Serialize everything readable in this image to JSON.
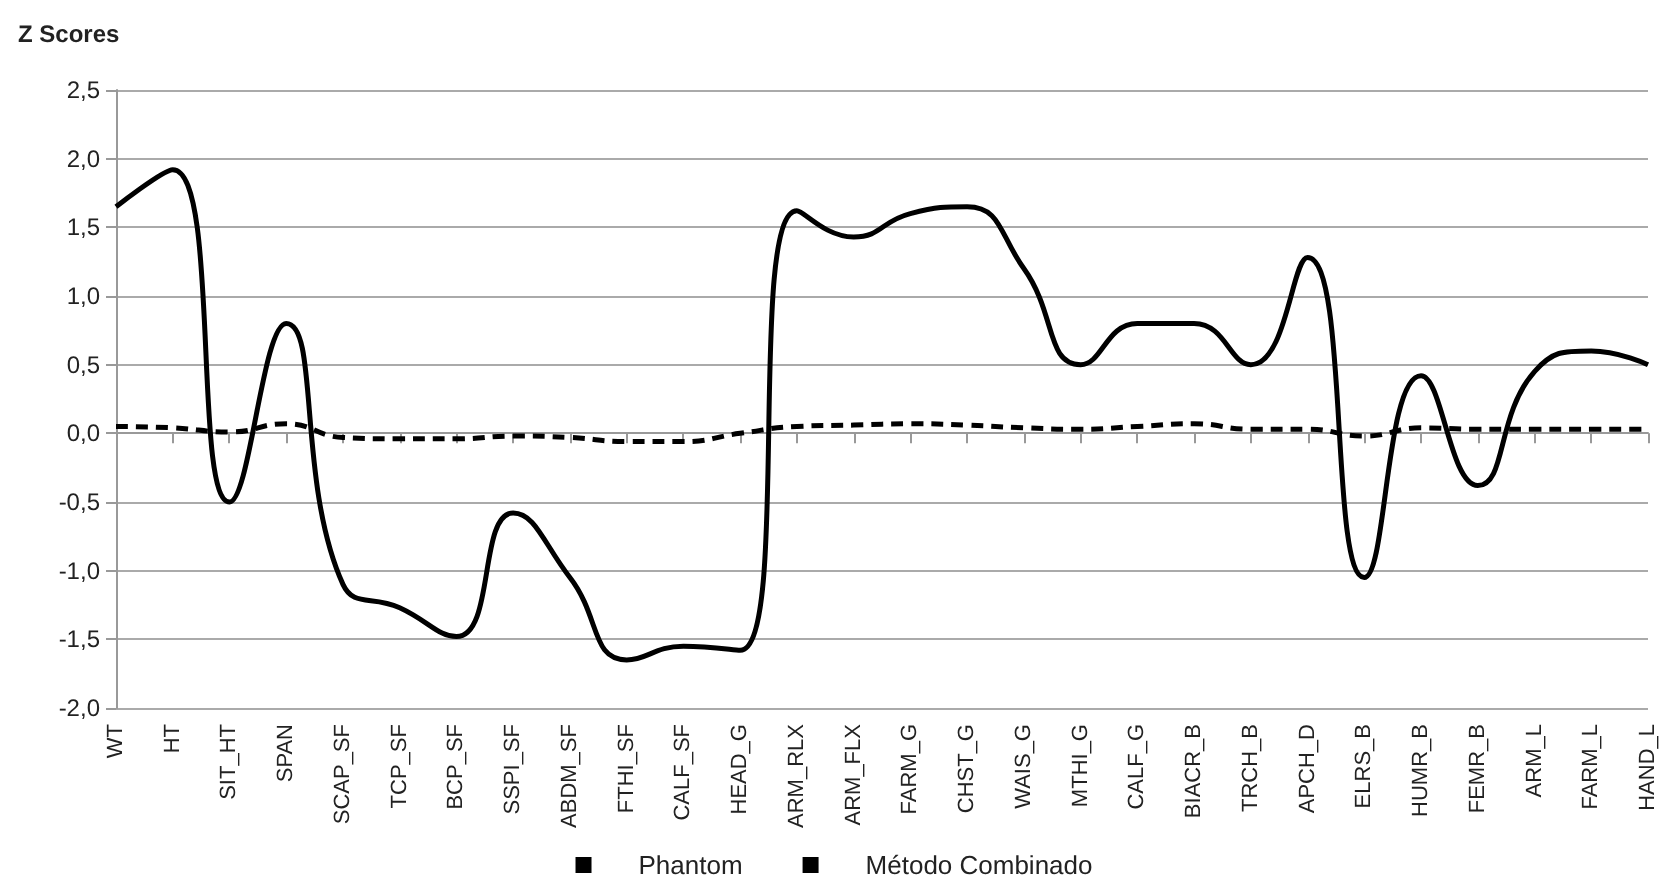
{
  "chart_data": {
    "type": "line",
    "ylabel": "Z Scores",
    "categories": [
      "WT",
      "HT",
      "SIT_HT",
      "SPAN",
      "SCAP_SF",
      "TCP_SF",
      "BCP_SF",
      "SSPI_SF",
      "ABDM_SF",
      "FTHI_SF",
      "CALF_SF",
      "HEAD_G",
      "ARM_RLX",
      "ARM_FLX",
      "FARM_G",
      "CHST_G",
      "WAIS_G",
      "MTHI_G",
      "CALF_G",
      "BIACR_B",
      "TRCH_B",
      "APCH_D",
      "ELRS_B",
      "HUMR_B",
      "FEMR_B",
      "ARM_L",
      "FARM_L",
      "HAND_L"
    ],
    "series": [
      {
        "name": "Phantom",
        "color": "#000000",
        "line_style": "solid",
        "values": [
          1.65,
          1.92,
          -0.5,
          0.8,
          -1.1,
          -1.27,
          -1.48,
          -0.58,
          -1.05,
          -1.65,
          -1.55,
          -1.58,
          1.62,
          1.43,
          1.6,
          1.65,
          1.2,
          0.5,
          0.8,
          0.8,
          0.5,
          1.28,
          -1.05,
          0.42,
          -0.38,
          0.45,
          0.6,
          0.5
        ]
      },
      {
        "name": "Método Combinado",
        "color": "#000000",
        "line_style": "dashed",
        "values": [
          0.05,
          0.04,
          0.01,
          0.07,
          -0.03,
          -0.04,
          -0.04,
          -0.02,
          -0.03,
          -0.06,
          -0.06,
          0.0,
          0.05,
          0.06,
          0.07,
          0.06,
          0.04,
          0.03,
          0.05,
          0.07,
          0.03,
          0.03,
          -0.02,
          0.04,
          0.03,
          0.03,
          0.03,
          0.03
        ]
      }
    ],
    "ylim": [
      -2,
      2.5
    ],
    "yticks": [
      {
        "value": -2,
        "label": "-2,0"
      },
      {
        "value": -1.5,
        "label": "-1,5"
      },
      {
        "value": -1,
        "label": "-1,0"
      },
      {
        "value": -0.5,
        "label": "-0,5"
      },
      {
        "value": 0,
        "label": "0,0"
      },
      {
        "value": 0.5,
        "label": "0,5"
      },
      {
        "value": 1,
        "label": "1,0"
      },
      {
        "value": 1.5,
        "label": "1,5"
      },
      {
        "value": 2,
        "label": "2,0"
      },
      {
        "value": 2.5,
        "label": "2,5"
      }
    ],
    "grid": "y",
    "legend": "bottom",
    "marker": "none"
  }
}
